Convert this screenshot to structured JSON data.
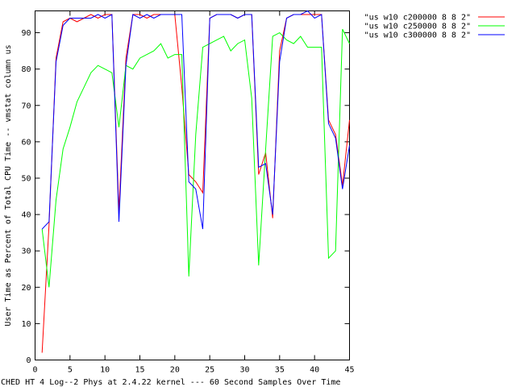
{
  "chart_data": {
    "type": "line",
    "title": "",
    "xlabel": "CHED HT 4 Log--2 Phys at 2.4.22 kernel --- 60 Second Samples Over Time",
    "ylabel": "User Time as Percent of Total CPU Time -- vmstat column us",
    "xlim": [
      0,
      45
    ],
    "ylim": [
      0,
      96
    ],
    "x_ticks": [
      0,
      5,
      10,
      15,
      20,
      25,
      30,
      35,
      40,
      45
    ],
    "y_ticks": [
      0,
      10,
      20,
      30,
      40,
      50,
      60,
      70,
      80,
      90
    ],
    "grid": false,
    "legend_position": "top-right",
    "x": [
      1,
      2,
      3,
      4,
      5,
      6,
      7,
      8,
      9,
      10,
      11,
      12,
      13,
      14,
      15,
      16,
      17,
      18,
      19,
      20,
      21,
      22,
      23,
      24,
      25,
      26,
      27,
      28,
      29,
      30,
      31,
      32,
      33,
      34,
      35,
      36,
      37,
      38,
      39,
      40,
      41,
      42,
      43,
      44,
      45
    ],
    "series": [
      {
        "name": "\"us w10 c200000 8 8 2\"",
        "color": "#ff0000",
        "values": [
          2,
          37,
          83,
          93,
          94,
          93,
          94,
          95,
          94,
          95,
          95,
          41,
          83,
          95,
          95,
          94,
          95,
          95,
          95,
          95,
          75,
          51,
          49,
          46,
          94,
          95,
          95,
          95,
          94,
          95,
          95,
          51,
          57,
          39,
          85,
          94,
          95,
          95,
          95,
          95,
          95,
          66,
          62,
          48,
          66
        ]
      },
      {
        "name": "\"us w10 c250000 8 8 2\"",
        "color": "#00ff00",
        "values": [
          36,
          20,
          44,
          58,
          64,
          71,
          75,
          79,
          81,
          80,
          79,
          64,
          81,
          80,
          83,
          84,
          85,
          87,
          83,
          84,
          84,
          23,
          62,
          86,
          87,
          88,
          89,
          85,
          87,
          88,
          72,
          26,
          58,
          89,
          90,
          88,
          87,
          89,
          86,
          86,
          86,
          28,
          30,
          91,
          87
        ]
      },
      {
        "name": "\"us w10 c300000 8 8 2\"",
        "color": "#0000ff",
        "values": [
          36,
          38,
          82,
          92,
          94,
          94,
          94,
          94,
          95,
          94,
          95,
          38,
          81,
          95,
          94,
          95,
          94,
          95,
          95,
          95,
          95,
          49,
          47,
          36,
          94,
          95,
          95,
          95,
          94,
          95,
          95,
          53,
          54,
          40,
          82,
          94,
          95,
          95,
          96,
          94,
          95,
          65,
          61,
          47,
          59
        ]
      }
    ]
  }
}
